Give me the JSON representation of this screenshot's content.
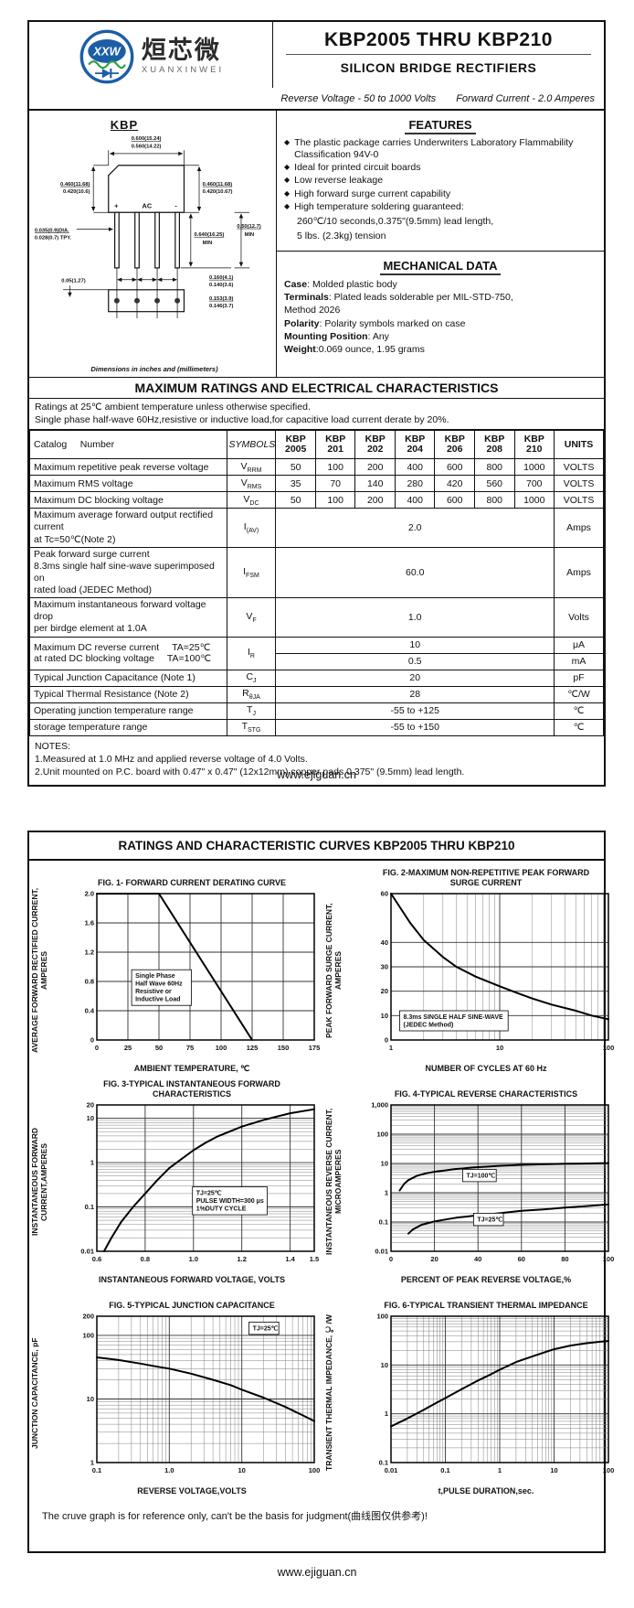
{
  "page1": {
    "logo": {
      "xxw": "XXW",
      "cn": "烜芯微",
      "en": "XUANXINWEI"
    },
    "title": "KBP2005 THRU KBP210",
    "subtitle": "SILICON BRIDGE RECTIFIERS",
    "tagline_left": "Reverse Voltage - 50 to 1000 Volts",
    "tagline_right": "Forward Current - 2.0 Amperes",
    "pkg": {
      "name": "KBP",
      "plus": "+",
      "ac": "AC",
      "minus": "-",
      "top1": "0.600(15.24)",
      "top2": "0.560(14.22)",
      "left1": "0.460(11.68)",
      "left2": "0.420(10.6)",
      "right1": "0.460(11.68)",
      "right2": "0.420(10.67)",
      "dia1": "0.035(0.9)DIA.",
      "dia2": "0.028(0.7) TPY.",
      "len1": "0.640(16.25)",
      "len2": "MIN",
      "clr1": "0.50(12.7)",
      "clr2": "MIN",
      "off": "0.05(1.27)",
      "pitch1": "0.160(4.1)",
      "pitch2": "0.140(3.6)",
      "hole1": "0.153(3.9)",
      "hole2": "0.146(3.7)",
      "caption": "Dimensions in inches and (millimeters)"
    },
    "features": {
      "heading": "FEATURES",
      "items": [
        "The plastic package carries Underwriters Laboratory Flammability Classification 94V-0",
        "Ideal for printed circuit boards",
        "Low reverse leakage",
        "High forward surge current capability",
        "High temperature soldering guaranteed:"
      ],
      "extra1": "260℃/10 seconds,0.375\"(9.5mm) lead length,",
      "extra2": "5 lbs. (2.3kg) tension"
    },
    "mech": {
      "heading": "MECHANICAL DATA",
      "rows": [
        {
          "b": "Case",
          "t": ": Molded plastic body"
        },
        {
          "b": "Terminals",
          "t": ": Plated leads solderable per MIL-STD-750,"
        },
        {
          "b": "",
          "t": "Method 2026"
        },
        {
          "b": "Polarity",
          "t": ": Polarity symbols marked on case"
        },
        {
          "b": "Mounting Position",
          "t": ": Any"
        },
        {
          "b": "Weight",
          "t": ":0.069 ounce, 1.95 grams"
        }
      ]
    },
    "ratings": {
      "heading": "MAXIMUM RATINGS AND ELECTRICAL CHARACTERISTICS",
      "intro1": "Ratings at 25℃ ambient temperature unless otherwise specified.",
      "intro2": "Single phase half-wave 60Hz,resistive or inductive load,for capacitive load current derate by 20%."
    },
    "table": {
      "catalog_label": "Catalog",
      "number_label": "Number",
      "symbols_label": "SYMBOLS",
      "units_label": "UNITS",
      "devices": [
        {
          "l1": "KBP",
          "l2": "2005"
        },
        {
          "l1": "KBP",
          "l2": "201"
        },
        {
          "l1": "KBP",
          "l2": "202"
        },
        {
          "l1": "KBP",
          "l2": "204"
        },
        {
          "l1": "KBP",
          "l2": "206"
        },
        {
          "l1": "KBP",
          "l2": "208"
        },
        {
          "l1": "KBP",
          "l2": "210"
        }
      ],
      "rows": [
        {
          "param": "Maximum repetitive peak reverse voltage",
          "sym": "V",
          "sub": "RRM",
          "values": [
            "50",
            "100",
            "200",
            "400",
            "600",
            "800",
            "1000"
          ],
          "units": "VOLTS"
        },
        {
          "param": "Maximum RMS voltage",
          "sym": "V",
          "sub": "RMS",
          "values": [
            "35",
            "70",
            "140",
            "280",
            "420",
            "560",
            "700"
          ],
          "units": "VOLTS"
        },
        {
          "param": "Maximum DC blocking voltage",
          "sym": "V",
          "sub": "DC",
          "values": [
            "50",
            "100",
            "200",
            "400",
            "600",
            "800",
            "1000"
          ],
          "units": "VOLTS"
        },
        {
          "l1": "Maximum average forward output rectified current",
          "l2": "at Tc=50℃(Note 2)",
          "sym": "I",
          "sub": "(AV)",
          "value": "2.0",
          "units": "Amps"
        },
        {
          "l1": "Peak forward surge current",
          "l2": "8.3ms single half sine-wave superimposed on",
          "l3": "rated load (JEDEC Method)",
          "sym": "I",
          "sub": "FSM",
          "value": "60.0",
          "units": "Amps"
        },
        {
          "l1": "Maximum instantaneous forward voltage drop",
          "l2": "per birdge element at 1.0A",
          "sym": "V",
          "sub": "F",
          "value": "1.0",
          "units": "Volts"
        },
        {
          "p1": "Maximum DC reverse current",
          "c1": "TA=25℃",
          "p2": "at rated DC blocking voltage",
          "c2": "TA=100℃",
          "sym": "I",
          "sub": "R",
          "v1": "10",
          "u1": "μA",
          "v2": "0.5",
          "u2": "mA"
        },
        {
          "param": "Typical Junction Capacitance (Note 1)",
          "sym": "C",
          "sub": "J",
          "value": "20",
          "units": "pF"
        },
        {
          "param": "Typical Thermal Resistance (Note 2)",
          "sym": "R",
          "sub": "θJA",
          "value": "28",
          "units": "℃/W"
        },
        {
          "param": "Operating junction temperature range",
          "sym": "T",
          "sub": "J",
          "value": "-55 to +125",
          "units": "℃"
        },
        {
          "param": "storage temperature range",
          "sym": "T",
          "sub": "STG",
          "value": "-55 to +150",
          "units": "℃"
        }
      ]
    },
    "notes": {
      "head": "NOTES:",
      "n1": "1.Measured at 1.0 MHz and applied reverse voltage of 4.0 Volts.",
      "n2": "2.Unit mounted on P.C. board with 0.47\"  x 0.47\" (12x12mm) copper pads,0.375\" (9.5mm) lead length."
    },
    "footer": "www.ejiguan.cn"
  },
  "page2": {
    "heading": "RATINGS AND CHARACTERISTIC CURVES KBP2005 THRU KBP210",
    "caption": "The cruve graph is for reference only, can't be the basis for judgment(曲线图仅供参考)!",
    "footer": "www.ejiguan.cn"
  },
  "colors": {
    "brand_blue": "#1b5ea6",
    "brand_green": "#2f9e44",
    "ink": "#111111"
  },
  "chart_data": [
    {
      "id": "fig1",
      "type": "line",
      "title": "FIG. 1- FORWARD CURRENT DERATING CURVE",
      "xlabel": "AMBIENT TEMPERATURE, ℃",
      "ylabel": "AVERAGE FORWARD RECTIFIED CURRENT, AMPERES",
      "xscale": "linear",
      "yscale": "linear",
      "xlim": [
        0,
        175
      ],
      "ylim": [
        0,
        2.0
      ],
      "xticks": [
        [
          0,
          "0"
        ],
        [
          25,
          "25"
        ],
        [
          50,
          "50"
        ],
        [
          75,
          "75"
        ],
        [
          100,
          "100"
        ],
        [
          125,
          "125"
        ],
        [
          150,
          "150"
        ],
        [
          175,
          "175"
        ]
      ],
      "yticks": [
        [
          0,
          "0"
        ],
        [
          0.4,
          "0.4"
        ],
        [
          0.8,
          "0.8"
        ],
        [
          1.2,
          "1.2"
        ],
        [
          1.6,
          "1.6"
        ],
        [
          2.0,
          "2.0"
        ]
      ],
      "grid": true,
      "legend": "none",
      "series": [
        {
          "name": "derating",
          "points": [
            [
              0,
              2
            ],
            [
              50,
              2
            ],
            [
              125,
              0
            ]
          ]
        }
      ],
      "annotations": [
        {
          "lines": [
            "Single Phase",
            "Half Wave 60Hz",
            "Resistive or",
            "Inductive Load"
          ],
          "fx": 0.16,
          "fy": 0.52,
          "box": true
        }
      ]
    },
    {
      "id": "fig2",
      "type": "line",
      "title": "FIG. 2-MAXIMUM NON-REPETITIVE PEAK FORWARD SURGE CURRENT",
      "xlabel": "NUMBER OF CYCLES AT 60 Hz",
      "ylabel": "PEAK  FORWARD SURGE CURRENT, AMPERES",
      "xscale": "log",
      "yscale": "linear",
      "xlim": [
        1,
        100
      ],
      "ylim": [
        0,
        60
      ],
      "xticks": [
        [
          1,
          "1"
        ],
        [
          10,
          "10"
        ],
        [
          100,
          "100"
        ]
      ],
      "yticks": [
        [
          0,
          "0"
        ],
        [
          10,
          "10"
        ],
        [
          20,
          "20"
        ],
        [
          30,
          "30"
        ],
        [
          40,
          "40"
        ],
        [
          60,
          "60"
        ]
      ],
      "grid": true,
      "legend": "none",
      "series": [
        {
          "name": "surge",
          "points": [
            [
              1,
              60
            ],
            [
              1.5,
              48
            ],
            [
              2,
              41
            ],
            [
              3,
              34
            ],
            [
              4,
              30
            ],
            [
              6,
              26
            ],
            [
              10,
              22
            ],
            [
              15,
              19
            ],
            [
              20,
              17
            ],
            [
              30,
              14.5
            ],
            [
              50,
              12
            ],
            [
              70,
              10
            ],
            [
              100,
              8.5
            ]
          ]
        }
      ],
      "annotations": [
        {
          "lines": [
            "8.3ms SINGLE HALF SINE-WAVE",
            "(JEDEC Method)"
          ],
          "fx": 0.04,
          "fy": 0.8,
          "box": true
        }
      ]
    },
    {
      "id": "fig3",
      "type": "line",
      "title": "FIG. 3-TYPICAL INSTANTANEOUS FORWARD CHARACTERISTICS",
      "xlabel": "INSTANTANEOUS FORWARD VOLTAGE, VOLTS",
      "ylabel": "INSTANTANEOUS FORWARD CURRENT,AMPERES",
      "xscale": "linear",
      "yscale": "log",
      "xlim": [
        0.6,
        1.5
      ],
      "ylim": [
        0.01,
        20
      ],
      "xticks": [
        [
          0.6,
          "0.6"
        ],
        [
          0.8,
          "0.8"
        ],
        [
          1.0,
          "1.0"
        ],
        [
          1.2,
          "1.2"
        ],
        [
          1.4,
          "1.4"
        ],
        [
          1.5,
          "1.5"
        ]
      ],
      "yticks": [
        [
          0.01,
          "0.01"
        ],
        [
          0.1,
          "0.1"
        ],
        [
          1,
          "1"
        ],
        [
          10,
          "10"
        ],
        [
          20,
          "20"
        ]
      ],
      "grid": true,
      "legend": "none",
      "series": [
        {
          "name": "vf",
          "points": [
            [
              0.63,
              0.01
            ],
            [
              0.66,
              0.02
            ],
            [
              0.7,
              0.045
            ],
            [
              0.75,
              0.1
            ],
            [
              0.8,
              0.2
            ],
            [
              0.85,
              0.4
            ],
            [
              0.9,
              0.75
            ],
            [
              0.95,
              1.2
            ],
            [
              1.0,
              1.9
            ],
            [
              1.05,
              2.8
            ],
            [
              1.1,
              3.9
            ],
            [
              1.2,
              6.5
            ],
            [
              1.3,
              9.5
            ],
            [
              1.4,
              13
            ],
            [
              1.5,
              16
            ]
          ]
        }
      ],
      "annotations": [
        {
          "lines": [
            "TJ=25℃",
            "PULSE WIDTH=300 μs",
            "1%DUTY CYCLE"
          ],
          "fx": 0.44,
          "fy": 0.56,
          "box": true
        }
      ]
    },
    {
      "id": "fig4",
      "type": "line",
      "title": "FIG. 4-TYPICAL REVERSE CHARACTERISTICS",
      "xlabel": "PERCENT OF PEAK REVERSE VOLTAGE,%",
      "ylabel": "INSTANTANEOUS REVERSE CURRENT, MICROAMPERES",
      "xscale": "linear",
      "yscale": "log",
      "xlim": [
        0,
        100
      ],
      "ylim": [
        0.01,
        1000
      ],
      "xticks": [
        [
          0,
          "0"
        ],
        [
          20,
          "20"
        ],
        [
          40,
          "40"
        ],
        [
          60,
          "60"
        ],
        [
          80,
          "80"
        ],
        [
          100,
          "100"
        ]
      ],
      "yticks": [
        [
          0.01,
          "0.01"
        ],
        [
          0.1,
          "0.1"
        ],
        [
          1,
          "1"
        ],
        [
          10,
          "10"
        ],
        [
          100,
          "100"
        ],
        [
          1000,
          "1,000"
        ]
      ],
      "grid": true,
      "legend": "inline",
      "series": [
        {
          "name": "TJ=100℃",
          "points": [
            [
              4,
              1.2
            ],
            [
              6,
              2
            ],
            [
              8,
              2.7
            ],
            [
              12,
              3.8
            ],
            [
              16,
              4.6
            ],
            [
              20,
              5.2
            ],
            [
              30,
              6.5
            ],
            [
              40,
              7.5
            ],
            [
              50,
              8.3
            ],
            [
              60,
              9
            ],
            [
              70,
              9.4
            ],
            [
              80,
              9.8
            ],
            [
              90,
              10
            ],
            [
              100,
              10.3
            ]
          ]
        },
        {
          "name": "TJ=25℃",
          "points": [
            [
              8,
              0.04
            ],
            [
              10,
              0.055
            ],
            [
              14,
              0.08
            ],
            [
              20,
              0.105
            ],
            [
              30,
              0.14
            ],
            [
              40,
              0.17
            ],
            [
              50,
              0.2
            ],
            [
              60,
              0.24
            ],
            [
              70,
              0.27
            ],
            [
              80,
              0.31
            ],
            [
              90,
              0.35
            ],
            [
              100,
              0.4
            ]
          ]
        }
      ],
      "annotations": [
        {
          "lines": [
            "TJ=100℃"
          ],
          "fx": 0.33,
          "fy": 0.44,
          "box": true
        },
        {
          "lines": [
            "TJ=25℃"
          ],
          "fx": 0.38,
          "fy": 0.74,
          "box": true
        }
      ]
    },
    {
      "id": "fig5",
      "type": "line",
      "title": "FIG. 5-TYPICAL JUNCTION CAPACITANCE",
      "xlabel": "REVERSE VOLTAGE,VOLTS",
      "ylabel": "JUNCTION CAPACITANCE, pF",
      "xscale": "log",
      "yscale": "log",
      "xlim": [
        0.1,
        100
      ],
      "ylim": [
        1,
        200
      ],
      "xticks": [
        [
          0.1,
          "0.1"
        ],
        [
          1,
          "1.0"
        ],
        [
          10,
          "10"
        ],
        [
          100,
          "100"
        ]
      ],
      "yticks": [
        [
          1,
          "1"
        ],
        [
          10,
          "10"
        ],
        [
          100,
          "100"
        ],
        [
          200,
          "200"
        ]
      ],
      "grid": true,
      "legend": "none",
      "series": [
        {
          "name": "cj",
          "points": [
            [
              0.1,
              45
            ],
            [
              0.2,
              41
            ],
            [
              0.4,
              36
            ],
            [
              0.7,
              32
            ],
            [
              1,
              30
            ],
            [
              2,
              25
            ],
            [
              4,
              20
            ],
            [
              7,
              16.5
            ],
            [
              10,
              14
            ],
            [
              20,
              10.5
            ],
            [
              40,
              7.5
            ],
            [
              70,
              5.5
            ],
            [
              100,
              4.5
            ]
          ]
        }
      ],
      "annotations": [
        {
          "lines": [
            "TJ=25℃"
          ],
          "fx": 0.7,
          "fy": 0.04,
          "box": true
        }
      ]
    },
    {
      "id": "fig6",
      "type": "line",
      "title": "FIG. 6-TYPICAL TRANSIENT THERMAL IMPEDANCE",
      "xlabel": "t,PULSE DURATION,sec.",
      "ylabel": "TRANSIENT THERMAL IMPEDANCE, ℃/W",
      "xscale": "log",
      "yscale": "log",
      "xlim": [
        0.01,
        100
      ],
      "ylim": [
        0.1,
        100
      ],
      "xticks": [
        [
          0.01,
          "0.01"
        ],
        [
          0.1,
          "0.1"
        ],
        [
          1,
          "1"
        ],
        [
          10,
          "10"
        ],
        [
          100,
          "100"
        ]
      ],
      "yticks": [
        [
          0.1,
          "0.1"
        ],
        [
          1,
          "1"
        ],
        [
          10,
          "10"
        ],
        [
          100,
          "100"
        ]
      ],
      "grid": true,
      "legend": "none",
      "series": [
        {
          "name": "zth",
          "points": [
            [
              0.01,
              0.55
            ],
            [
              0.02,
              0.8
            ],
            [
              0.04,
              1.2
            ],
            [
              0.07,
              1.7
            ],
            [
              0.1,
              2.1
            ],
            [
              0.2,
              3.2
            ],
            [
              0.4,
              4.8
            ],
            [
              0.7,
              6.5
            ],
            [
              1,
              8
            ],
            [
              2,
              11.5
            ],
            [
              4,
              15
            ],
            [
              7,
              18.5
            ],
            [
              10,
              21
            ],
            [
              20,
              25
            ],
            [
              40,
              28
            ],
            [
              70,
              30
            ],
            [
              100,
              31
            ]
          ]
        }
      ],
      "annotations": []
    }
  ]
}
